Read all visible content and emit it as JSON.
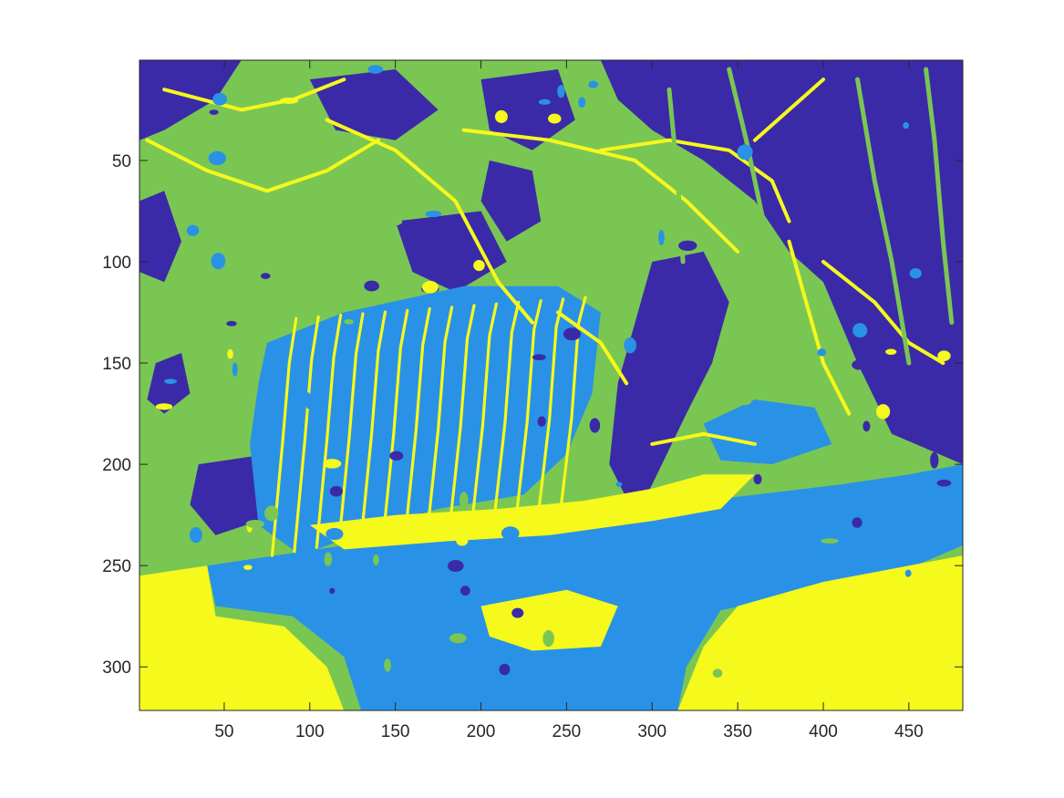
{
  "chart_data": {
    "type": "heatmap",
    "title": "",
    "xlabel": "",
    "ylabel": "",
    "image_width": 481,
    "image_height": 321,
    "xlim": [
      0.5,
      481.5
    ],
    "ylim": [
      0.5,
      321.5
    ],
    "y_direction": "reverse",
    "xticks": [
      50,
      100,
      150,
      200,
      250,
      300,
      350,
      400,
      450
    ],
    "xtick_labels": [
      "50",
      "100",
      "150",
      "200",
      "250",
      "300",
      "350",
      "400",
      "450"
    ],
    "yticks": [
      50,
      100,
      150,
      200,
      250,
      300
    ],
    "ytick_labels": [
      "50",
      "100",
      "150",
      "200",
      "250",
      "300"
    ],
    "grid": false,
    "legend": "none",
    "colormap": "parula",
    "levels": 4,
    "level_colors": [
      "#3a2aa8",
      "#2992e6",
      "#7ac653",
      "#f6f91c"
    ],
    "dominant_level_by_region": [
      {
        "region": "top band (rows 1-60)",
        "level": "mixed dark blue / green with yellow branches"
      },
      {
        "region": "upper-right corner",
        "level": "dark blue"
      },
      {
        "region": "middle-left",
        "level": "green"
      },
      {
        "region": "tiger body (rows 120-230, cols 80-300)",
        "level": "light blue with yellow stripes"
      },
      {
        "region": "water band (rows 230-321, cols 40-340)",
        "level": "light blue"
      },
      {
        "region": "bottom corners",
        "level": "yellow"
      }
    ]
  }
}
